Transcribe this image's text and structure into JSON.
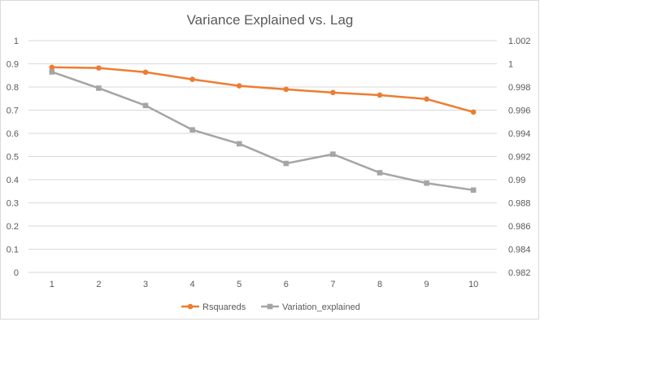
{
  "chart_data": {
    "type": "line",
    "title": "Variance Explained vs. Lag",
    "categories": [
      "1",
      "2",
      "3",
      "4",
      "5",
      "6",
      "7",
      "8",
      "9",
      "10"
    ],
    "y_left": {
      "min": 0,
      "max": 1,
      "step": 0.1,
      "ticks": [
        "0",
        "0.1",
        "0.2",
        "0.3",
        "0.4",
        "0.5",
        "0.6",
        "0.7",
        "0.8",
        "0.9",
        "1"
      ]
    },
    "y_right": {
      "min": 0.982,
      "max": 1.002,
      "step": 0.002,
      "ticks": [
        "0.982",
        "0.984",
        "0.986",
        "0.988",
        "0.99",
        "0.992",
        "0.994",
        "0.996",
        "0.998",
        "1",
        "1.002"
      ]
    },
    "grid": true,
    "legend_position": "bottom",
    "series": [
      {
        "name": "Rsquareds",
        "axis": "left",
        "color": "#ed7d31",
        "marker": "circle",
        "values": [
          0.885,
          0.882,
          0.864,
          0.833,
          0.805,
          0.79,
          0.776,
          0.765,
          0.748,
          0.692
        ]
      },
      {
        "name": "Variation_explained",
        "axis": "right",
        "color": "#a5a5a5",
        "marker": "square",
        "values": [
          0.9993,
          0.9979,
          0.9964,
          0.9943,
          0.9931,
          0.9914,
          0.9922,
          0.9906,
          0.9897,
          0.9891
        ]
      }
    ]
  }
}
